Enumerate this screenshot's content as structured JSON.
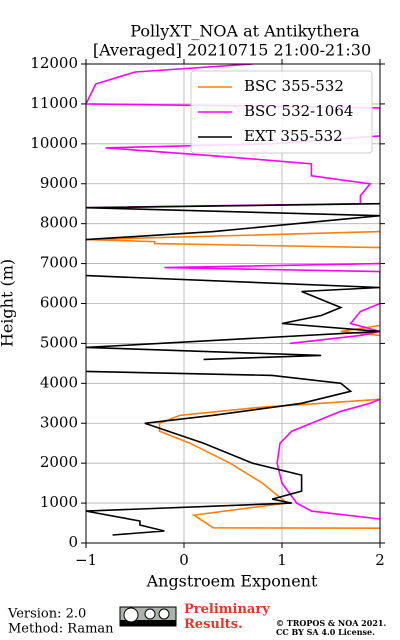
{
  "chart_data": {
    "type": "line",
    "title": "PollyXT_NOA at Antikythera",
    "subtitle": "[Averaged] 20210715 21:00-21:30",
    "x_label": "Angstroem Exponent",
    "y_label": "Height (m)",
    "xlim": [
      -1,
      2
    ],
    "xticks": [
      {
        "value": -1,
        "label": "−1"
      },
      0,
      1,
      2
    ],
    "ylim": [
      0,
      12000
    ],
    "yticks": [
      0,
      1000,
      2000,
      3000,
      4000,
      5000,
      6000,
      7000,
      8000,
      9000,
      10000,
      11000,
      12000
    ],
    "grid": true,
    "legend": "upper right",
    "series": [
      {
        "name": "BSC 355-532",
        "color": "#ff7f0e",
        "heights": [
          370,
          380,
          700,
          1000,
          1500,
          2000,
          2500,
          2800,
          3000,
          3200,
          3400,
          3500,
          3600,
          4000,
          5200,
          5300,
          5450,
          6000,
          7400,
          7500,
          7550,
          7600,
          7800
        ],
        "values": [
          2,
          0.3,
          0.1,
          1.05,
          0.8,
          0.47,
          0.06,
          -0.25,
          -0.25,
          -0.04,
          0.78,
          1.4,
          2,
          null,
          2,
          1.6,
          2,
          null,
          2,
          -0.3,
          -0.3,
          -1,
          2
        ]
      },
      {
        "name": "BSC 532-1064",
        "color": "#ff00ff",
        "heights": [
          600,
          800,
          1000,
          1500,
          2000,
          2500,
          2800,
          3000,
          3300,
          3500,
          3700,
          4000,
          5000,
          5200,
          5300,
          5500,
          5800,
          6000,
          6800,
          6900,
          7000,
          7500,
          8400,
          8500,
          8700,
          9000,
          9200,
          9500,
          9700,
          9900,
          10000,
          10200,
          10900,
          11000,
          11500,
          11800,
          12000
        ],
        "values": [
          2,
          1.3,
          1.15,
          1.0,
          0.95,
          0.98,
          1.1,
          1.3,
          1.6,
          1.9,
          2.1,
          null,
          1.08,
          1.8,
          2,
          1.7,
          1.8,
          2,
          2,
          -0.2,
          2,
          null,
          -1,
          1.8,
          1.8,
          1.9,
          1.3,
          1.3,
          0.3,
          -0.8,
          0.9,
          2,
          2,
          -1,
          -0.9,
          -0.5,
          0.7
        ]
      },
      {
        "name": "EXT 355-532",
        "color": "#000000",
        "heights": [
          200,
          300,
          450,
          550,
          800,
          1000,
          1100,
          1300,
          1700,
          2000,
          2500,
          3000,
          3200,
          3500,
          3800,
          4000,
          4200,
          4300,
          4500,
          4600,
          4700,
          4900,
          5300,
          5500,
          5700,
          5900,
          6000,
          6300,
          6400,
          6700,
          6800,
          7600,
          7800,
          8200,
          8400,
          8500
        ],
        "values": [
          -0.73,
          -0.2,
          -0.45,
          -0.45,
          -1,
          1.1,
          0.9,
          1.2,
          1.2,
          0.7,
          0.2,
          -0.4,
          0.3,
          1.2,
          1.7,
          1.6,
          0.9,
          -1,
          null,
          0.2,
          1.4,
          -1,
          2,
          1.0,
          1.4,
          1.6,
          1.5,
          1.2,
          2,
          -1,
          null,
          -1,
          0.3,
          2,
          -1,
          2
        ]
      }
    ]
  },
  "footer": {
    "version": "Version: 2.0",
    "method": "Method: Raman",
    "status": "Preliminary Results.",
    "copyright": "© TROPOS & NOA 2021.",
    "license": "CC BY SA 4.0 License."
  }
}
